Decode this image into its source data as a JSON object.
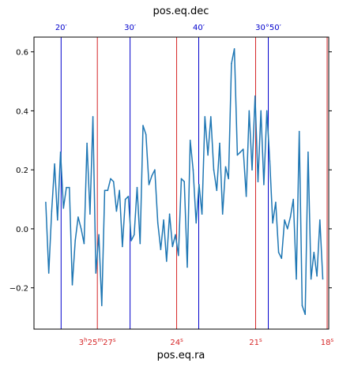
{
  "chart_data": {
    "type": "line",
    "title": "pos.eq.dec",
    "xlabel": "pos.eq.ra",
    "ylabel": "",
    "xlim": [
      0,
      100
    ],
    "ylim": [
      -0.34,
      0.65
    ],
    "grid": false,
    "legend": "none",
    "line_color": "#1f77b4",
    "ra_grid_color": "#d62728",
    "dec_grid_color": "#0000cc",
    "y_ticks": [
      {
        "value": -0.2,
        "label": "−0.2"
      },
      {
        "value": 0.0,
        "label": "0.0"
      },
      {
        "value": 0.2,
        "label": "0.2"
      },
      {
        "value": 0.4,
        "label": "0.4"
      },
      {
        "value": 0.6,
        "label": "0.6"
      }
    ],
    "ra_ticks": [
      {
        "x": 21.5,
        "h": "3",
        "hu": "h",
        "m": "25",
        "mu": "m",
        "s": "27",
        "su": "s"
      },
      {
        "x": 48.4,
        "h": "",
        "hu": "",
        "m": "",
        "mu": "",
        "s": "24",
        "su": "s"
      },
      {
        "x": 75.2,
        "h": "",
        "hu": "",
        "m": "",
        "mu": "",
        "s": "21",
        "su": "s"
      },
      {
        "x": 102.0,
        "h": "",
        "hu": "",
        "m": "",
        "mu": "",
        "s": "18",
        "su": "s"
      }
    ],
    "dec_ticks": [
      {
        "x": 9.2,
        "label": "20′"
      },
      {
        "x": 32.6,
        "label": "30′"
      },
      {
        "x": 55.9,
        "label": "40′"
      },
      {
        "x": 79.5,
        "label": "30°50′"
      }
    ],
    "series": [
      {
        "x": [
          4,
          5,
          6,
          7,
          8,
          9,
          10,
          11,
          12,
          13,
          14,
          15,
          16,
          17,
          18,
          19,
          20,
          21,
          22,
          23,
          24,
          25,
          26,
          27,
          28,
          29,
          30,
          31,
          32,
          33,
          34,
          35,
          36,
          37,
          38,
          39,
          40,
          41,
          42,
          43,
          44,
          45,
          46,
          47,
          48,
          49,
          50,
          51,
          52,
          53,
          54,
          55,
          56,
          57,
          58,
          59,
          60,
          61,
          62,
          63,
          64,
          65,
          66,
          67,
          68,
          69,
          70,
          71,
          72,
          73,
          74,
          75,
          76,
          77,
          78,
          79,
          80,
          81,
          82,
          83,
          84,
          85,
          86,
          87,
          88,
          89,
          90,
          91,
          92,
          93,
          94,
          95,
          96,
          97,
          98
        ],
        "y": [
          0.09,
          -0.15,
          0.06,
          0.22,
          0.03,
          0.26,
          0.07,
          0.14,
          0.14,
          -0.19,
          -0.04,
          0.04,
          0.0,
          -0.05,
          0.29,
          0.05,
          0.38,
          -0.15,
          -0.02,
          -0.26,
          0.13,
          0.13,
          0.17,
          0.16,
          0.06,
          0.13,
          -0.06,
          0.1,
          0.11,
          -0.04,
          -0.02,
          0.14,
          -0.05,
          0.35,
          0.32,
          0.15,
          0.18,
          0.2,
          0.02,
          -0.07,
          0.03,
          -0.11,
          0.05,
          -0.06,
          -0.02,
          -0.09,
          0.17,
          0.16,
          -0.13,
          0.3,
          0.2,
          0.02,
          0.15,
          0.05,
          0.38,
          0.25,
          0.38,
          0.2,
          0.13,
          0.29,
          0.05,
          0.21,
          0.17,
          0.56,
          0.61,
          0.25,
          0.26,
          0.27,
          0.11,
          0.4,
          0.2,
          0.45,
          0.16,
          0.4,
          0.15,
          0.4,
          0.23,
          0.02,
          0.09,
          -0.08,
          -0.1,
          0.03,
          0.0,
          0.04,
          0.1,
          -0.17,
          0.33,
          -0.26,
          -0.29,
          0.26,
          -0.17,
          -0.08,
          -0.16,
          0.03,
          -0.17
        ]
      }
    ]
  }
}
